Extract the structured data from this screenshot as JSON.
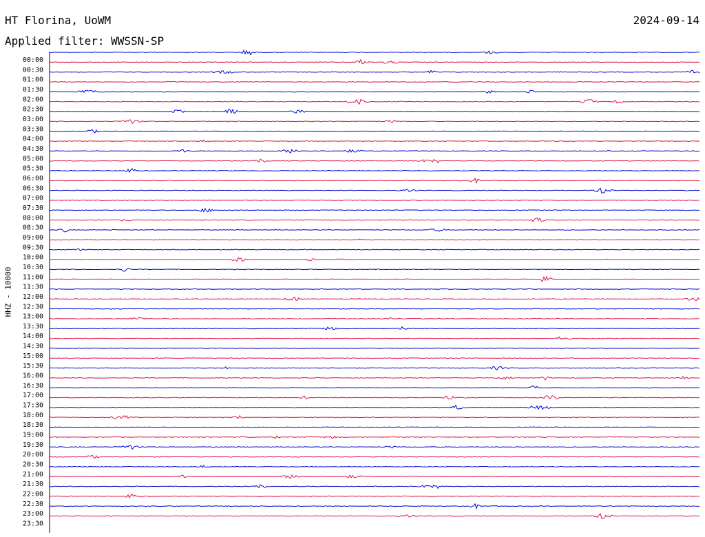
{
  "header": {
    "station": "HT Florina, UoWM",
    "date": "2024-09-14",
    "filter": "Applied filter: WWSSN-SP"
  },
  "colors": {
    "odd": "#0000cc",
    "even": "#dd1144",
    "axis": "#000000"
  },
  "chart_data": {
    "type": "helicorder",
    "ylabel": "HHZ - 10000",
    "row_labels": [
      "00:00",
      "00:30",
      "01:00",
      "01:30",
      "02:00",
      "02:30",
      "03:00",
      "03:30",
      "04:00",
      "04:30",
      "05:00",
      "05:30",
      "06:00",
      "06:30",
      "07:00",
      "07:30",
      "08:00",
      "08:30",
      "09:00",
      "09:30",
      "10:00",
      "10:30",
      "11:00",
      "11:30",
      "12:00",
      "12:30",
      "13:00",
      "13:30",
      "14:00",
      "14:30",
      "15:00",
      "15:30",
      "16:00",
      "16:30",
      "17:00",
      "17:30",
      "18:00",
      "18:30",
      "19:00",
      "19:30",
      "20:00",
      "20:30",
      "21:00",
      "21:30",
      "22:00",
      "22:30",
      "23:00",
      "23:30"
    ],
    "trace_colors": [
      "blue",
      "red"
    ],
    "grid": false
  }
}
